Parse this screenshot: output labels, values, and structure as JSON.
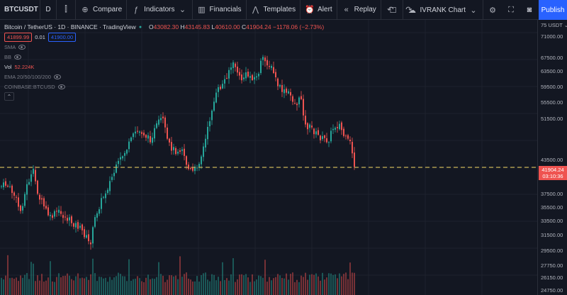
{
  "toolbar": {
    "symbol": "BTCUSDT",
    "interval": "D",
    "compare_label": "Compare",
    "indicators_label": "Indicators",
    "financials_label": "Financials",
    "templates_label": "Templates",
    "alert_label": "Alert",
    "replay_label": "Replay",
    "layout_label": "IVRANK Chart",
    "publish_label": "Publish"
  },
  "legend": {
    "title": "Bitcoin / TetherUS · 1D · BINANCE · TradingView",
    "o_label": "O",
    "o_value": "43082.30",
    "h_label": "H",
    "h_value": "43145.83",
    "l_label": "L",
    "l_value": "40610.00",
    "c_label": "C",
    "c_value": "41904.24",
    "change": "−1178.06 (−2.73%)",
    "sell_price": "41899.99",
    "spread": "0.01",
    "buy_price": "41900.00"
  },
  "indicators": [
    {
      "name": "SMA"
    },
    {
      "name": "BB"
    },
    {
      "name": "Vol",
      "value": "52.224K"
    },
    {
      "name": "EMA 20/50/100/200"
    },
    {
      "name": "COINBASE:BTCUSD"
    }
  ],
  "price_axis": {
    "header": "USDT",
    "ticks": [
      "71000.00",
      "67500.00",
      "63500.00",
      "59500.00",
      "55500.00",
      "51500.00",
      "43500.00",
      "37500.00",
      "35500.00",
      "33500.00",
      "31500.00",
      "29500.00",
      "27750.00",
      "26150.00",
      "24750.00"
    ],
    "current_price": "41904.24",
    "countdown": "03:10:36"
  },
  "colors": {
    "up": "#26a69a",
    "down": "#ef5350",
    "accent": "#2962ff",
    "dashed_line": "#c9b458"
  }
}
